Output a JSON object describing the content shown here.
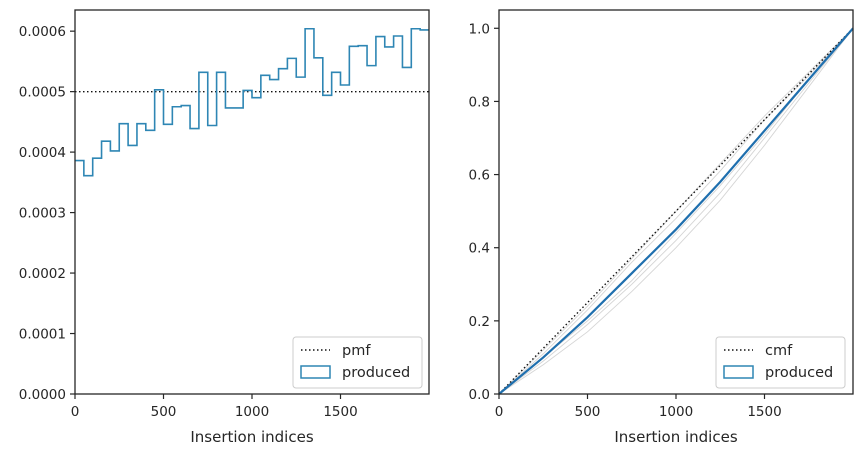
{
  "chart_data": [
    {
      "type": "histogram-step",
      "xlabel": "Insertion indices",
      "xlim": [
        0,
        2000
      ],
      "ylim": [
        0,
        0.000635
      ],
      "xticks": [
        0,
        500,
        1000,
        1500
      ],
      "yticks": [
        0,
        0.0001,
        0.0002,
        0.0003,
        0.0004,
        0.0005,
        0.0006
      ],
      "ytick_labels": [
        "0.0000",
        "0.0001",
        "0.0002",
        "0.0003",
        "0.0004",
        "0.0005",
        "0.0006"
      ],
      "pmf_value": 0.0005,
      "bin_width": 50,
      "produced_values": [
        0.000386,
        0.000361,
        0.00039,
        0.000418,
        0.000402,
        0.000447,
        0.000411,
        0.000447,
        0.000436,
        0.000503,
        0.000446,
        0.000475,
        0.000477,
        0.000439,
        0.000532,
        0.000444,
        0.000532,
        0.000473,
        0.000473,
        0.000502,
        0.00049,
        0.000527,
        0.00052,
        0.000538,
        0.000555,
        0.000524,
        0.000604,
        0.000556,
        0.000494,
        0.000532,
        0.000511,
        0.000575,
        0.000576,
        0.000543,
        0.000591,
        0.000574,
        0.000592,
        0.00054,
        0.000604,
        0.000602
      ],
      "legend": {
        "location": "lower right",
        "entries": [
          "pmf",
          "produced"
        ]
      }
    },
    {
      "type": "line",
      "xlabel": "Insertion indices",
      "xlim": [
        0,
        2000
      ],
      "ylim": [
        0,
        1.05
      ],
      "xticks": [
        0,
        500,
        1000,
        1500
      ],
      "yticks": [
        0,
        0.2,
        0.4,
        0.6,
        0.8,
        1.0
      ],
      "ytick_labels": [
        "0.0",
        "0.2",
        "0.4",
        "0.6",
        "0.8",
        "1.0"
      ],
      "cmf": {
        "x": [
          0,
          2000
        ],
        "y": [
          0,
          1.0
        ]
      },
      "produced": {
        "x": [
          0,
          250,
          500,
          750,
          1000,
          1250,
          1500,
          1750,
          2000
        ],
        "y": [
          0,
          0.1,
          0.21,
          0.33,
          0.45,
          0.58,
          0.72,
          0.86,
          1.0
        ]
      },
      "samples": [
        {
          "x": [
            0,
            250,
            500,
            750,
            1000,
            1250,
            1500,
            1750,
            2000
          ],
          "y": [
            0,
            0.11,
            0.23,
            0.36,
            0.48,
            0.61,
            0.75,
            0.87,
            1.0
          ]
        },
        {
          "x": [
            0,
            250,
            500,
            750,
            1000,
            1250,
            1500,
            1750,
            2000
          ],
          "y": [
            0,
            0.09,
            0.19,
            0.3,
            0.42,
            0.55,
            0.7,
            0.85,
            1.0
          ]
        },
        {
          "x": [
            0,
            250,
            500,
            750,
            1000,
            1250,
            1500,
            1750,
            2000
          ],
          "y": [
            0,
            0.08,
            0.17,
            0.28,
            0.4,
            0.53,
            0.68,
            0.84,
            1.0
          ]
        },
        {
          "x": [
            0,
            250,
            500,
            750,
            1000,
            1250,
            1500,
            1750,
            2000
          ],
          "y": [
            0,
            0.12,
            0.24,
            0.37,
            0.5,
            0.63,
            0.76,
            0.88,
            1.0
          ]
        },
        {
          "x": [
            0,
            250,
            500,
            750,
            1000,
            1250,
            1500,
            1750,
            2000
          ],
          "y": [
            0,
            0.1,
            0.2,
            0.31,
            0.44,
            0.57,
            0.71,
            0.86,
            1.0
          ]
        }
      ],
      "legend": {
        "location": "lower right",
        "entries": [
          "cmf",
          "produced"
        ]
      }
    }
  ],
  "colors": {
    "produced": "#2e86b4",
    "produced_line": "#1f6fae",
    "sample": "#d5d5d5",
    "reference": "#111111",
    "axes": "#262626"
  }
}
